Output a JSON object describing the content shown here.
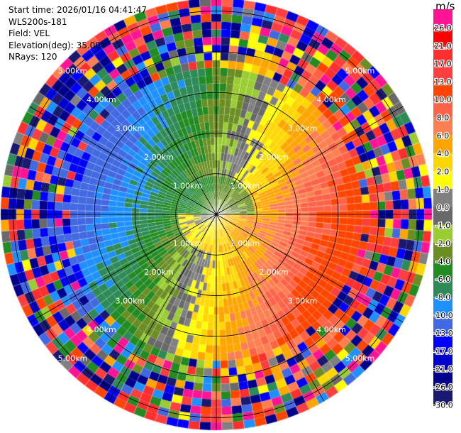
{
  "header": {
    "start_time": "Start time: 2026/01/16 04:41:47",
    "instrument": "WLS200s-181",
    "field": "Field: VEL",
    "elevation": "Elevation(deg): 35.00",
    "nrays": "NRays: 120"
  },
  "colorbar": {
    "unit": "m/s",
    "ticks": [
      "26.0",
      "21.0",
      "17.0",
      "13.0",
      "10.0",
      "8.0",
      "6.0",
      "4.0",
      "2.0",
      "1.0",
      "0.0",
      "-1.0",
      "-2.0",
      "-4.0",
      "-6.0",
      "-8.0",
      "-10.0",
      "-13.0",
      "-17.0",
      "-21.0",
      "-26.0",
      "-30.0"
    ],
    "colors": [
      "#ff1493",
      "#ff0000",
      "#ff2f2f",
      "#ff3f3f",
      "#ff4500",
      "#ff6347",
      "#ff7f50",
      "#ffa500",
      "#ffd700",
      "#ffff00",
      "#808080",
      "#696969",
      "#9acd32",
      "#6b8e23",
      "#228b22",
      "#2e8b57",
      "#1e90ff",
      "#4169e1",
      "#0000ff",
      "#0000cd",
      "#00008b",
      "#191970"
    ]
  },
  "chart_data": {
    "type": "heatmap",
    "projection": "polar PPI",
    "field": "VEL",
    "units": "m/s",
    "nrays": 120,
    "range_ring_labels_km": [
      1.0,
      2.0,
      3.0,
      4.0,
      5.0
    ],
    "range_labels": [
      "1.00km",
      "2.00km",
      "3.00km",
      "4.00km",
      "5.00km"
    ],
    "max_range_km": 5.2,
    "gate_count": 28,
    "velocity_range": [
      -30.0,
      26.0
    ],
    "pattern_description_values": {
      "near_north_mean": -5,
      "near_south_mean": 4,
      "east_far_mean": 10,
      "west_far_mean": -11
    }
  }
}
